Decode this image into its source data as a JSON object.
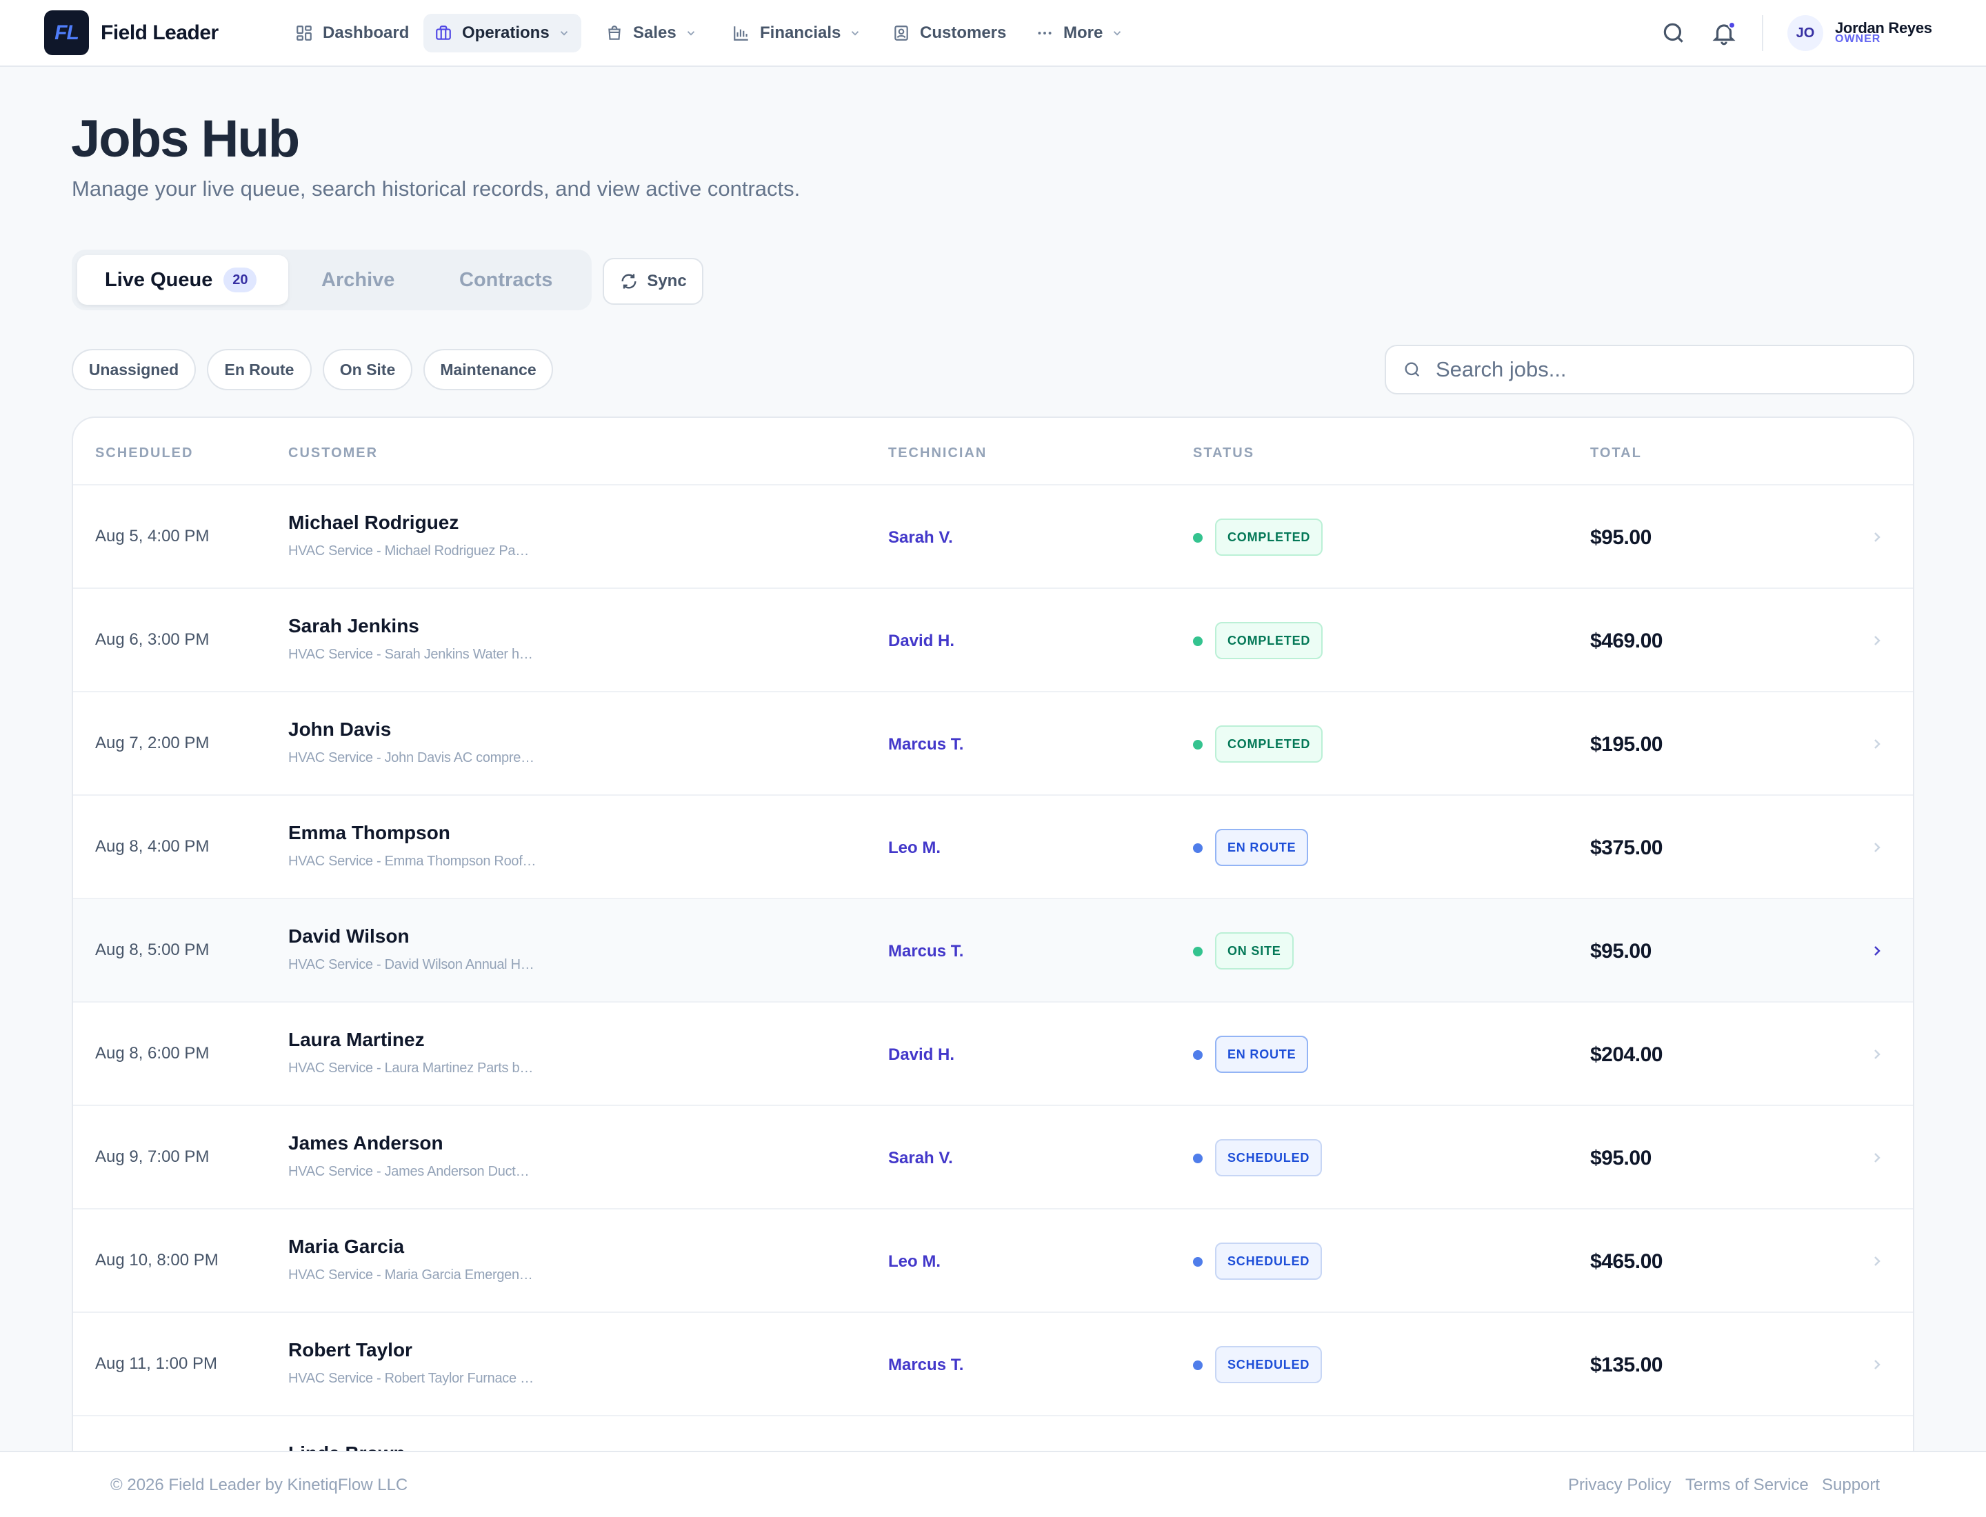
{
  "brand": {
    "logo_text": "FL",
    "name": "Field Leader"
  },
  "nav": {
    "items": [
      {
        "label": "Dashboard",
        "icon": "grid-icon"
      },
      {
        "label": "Operations",
        "icon": "briefcase-icon",
        "active": true
      },
      {
        "label": "Sales",
        "icon": "shopping-bag-icon"
      },
      {
        "label": "Financials",
        "icon": "bar-chart-icon"
      },
      {
        "label": "Customers",
        "icon": "contact-card-icon"
      },
      {
        "label": "More",
        "icon": "more-dots-icon"
      }
    ]
  },
  "user": {
    "initials": "JO",
    "name": "Jordan Reyes",
    "role": "OWNER"
  },
  "page": {
    "title": "Jobs Hub",
    "subtitle": "Manage your live queue, search historical records, and view active contracts."
  },
  "tabs": [
    {
      "label": "Live Queue",
      "badge": "20",
      "active": true
    },
    {
      "label": "Archive"
    },
    {
      "label": "Contracts"
    }
  ],
  "sync_label": "Sync",
  "filters": [
    "Unassigned",
    "En Route",
    "On Site",
    "Maintenance"
  ],
  "search": {
    "placeholder": "Search jobs...",
    "value": ""
  },
  "table": {
    "headers": {
      "scheduled": "SCHEDULED",
      "customer": "CUSTOMER",
      "technician": "TECHNICIAN",
      "status": "STATUS",
      "total": "TOTAL"
    },
    "rows": [
      {
        "date": "Aug 5, 4:00 PM",
        "customer": "Michael Rodriguez",
        "desc": "HVAC Service - Michael Rodriguez Panel…",
        "tech": "Sarah V.",
        "status": "COMPLETED",
        "total": "$95.00"
      },
      {
        "date": "Aug 6, 3:00 PM",
        "customer": "Sarah Jenkins",
        "desc": "HVAC Service - Sarah Jenkins Water hea…",
        "tech": "David H.",
        "status": "COMPLETED",
        "total": "$469.00"
      },
      {
        "date": "Aug 7, 2:00 PM",
        "customer": "John Davis",
        "desc": "HVAC Service - John Davis AC compress…",
        "tech": "Marcus T.",
        "status": "COMPLETED",
        "total": "$195.00"
      },
      {
        "date": "Aug 8, 4:00 PM",
        "customer": "Emma Thompson",
        "desc": "HVAC Service - Emma Thompson Roof l…",
        "tech": "Leo M.",
        "status": "EN ROUTE",
        "total": "$375.00"
      },
      {
        "date": "Aug 8, 5:00 PM",
        "customer": "David Wilson",
        "desc": "HVAC Service - David Wilson Annual HV…",
        "tech": "Marcus T.",
        "status": "ON SITE",
        "total": "$95.00",
        "hover": true
      },
      {
        "date": "Aug 8, 6:00 PM",
        "customer": "Laura Martinez",
        "desc": "HVAC Service - Laura Martinez Parts bac…",
        "tech": "David H.",
        "status": "EN ROUTE",
        "total": "$204.00"
      },
      {
        "date": "Aug 9, 7:00 PM",
        "customer": "James Anderson",
        "desc": "HVAC Service - James Anderson Ductwo…",
        "tech": "Sarah V.",
        "status": "SCHEDULED",
        "total": "$95.00"
      },
      {
        "date": "Aug 10, 8:00 PM",
        "customer": "Maria Garcia",
        "desc": "HVAC Service - Maria Garcia Emergency…",
        "tech": "Leo M.",
        "status": "SCHEDULED",
        "total": "$465.00"
      },
      {
        "date": "Aug 11, 1:00 PM",
        "customer": "Robert Taylor",
        "desc": "HVAC Service - Robert Taylor Furnace ig…",
        "tech": "Marcus T.",
        "status": "SCHEDULED",
        "total": "$135.00"
      },
      {
        "date": "",
        "customer": "Linda Brown",
        "desc": "",
        "tech": "",
        "status": "",
        "total": ""
      }
    ]
  },
  "status_colors": {
    "COMPLETED": {
      "dot": "#34c38f",
      "bg": "#ecfdf5",
      "border": "#bbf0d6",
      "text": "#047857"
    },
    "ON SITE": {
      "dot": "#34c38f",
      "bg": "#ecfdf5",
      "border": "#bbf0d6",
      "text": "#047857"
    },
    "EN ROUTE": {
      "dot": "#4f7dea",
      "bg": "#eff4ff",
      "border": "#93b4f5",
      "text": "#1d4ed8"
    },
    "SCHEDULED": {
      "dot": "#4f7dea",
      "bg": "#eff4ff",
      "border": "#c7d6f5",
      "text": "#1d4ed8"
    }
  },
  "footer": {
    "copyright": "© 2026 Field Leader by KinetiqFlow LLC",
    "links": [
      "Privacy Policy",
      "Terms of Service",
      "Support"
    ]
  },
  "colors": {
    "accent": "#4f46e5",
    "brand_dark": "#0f172a",
    "background": "#f7f9fb"
  }
}
